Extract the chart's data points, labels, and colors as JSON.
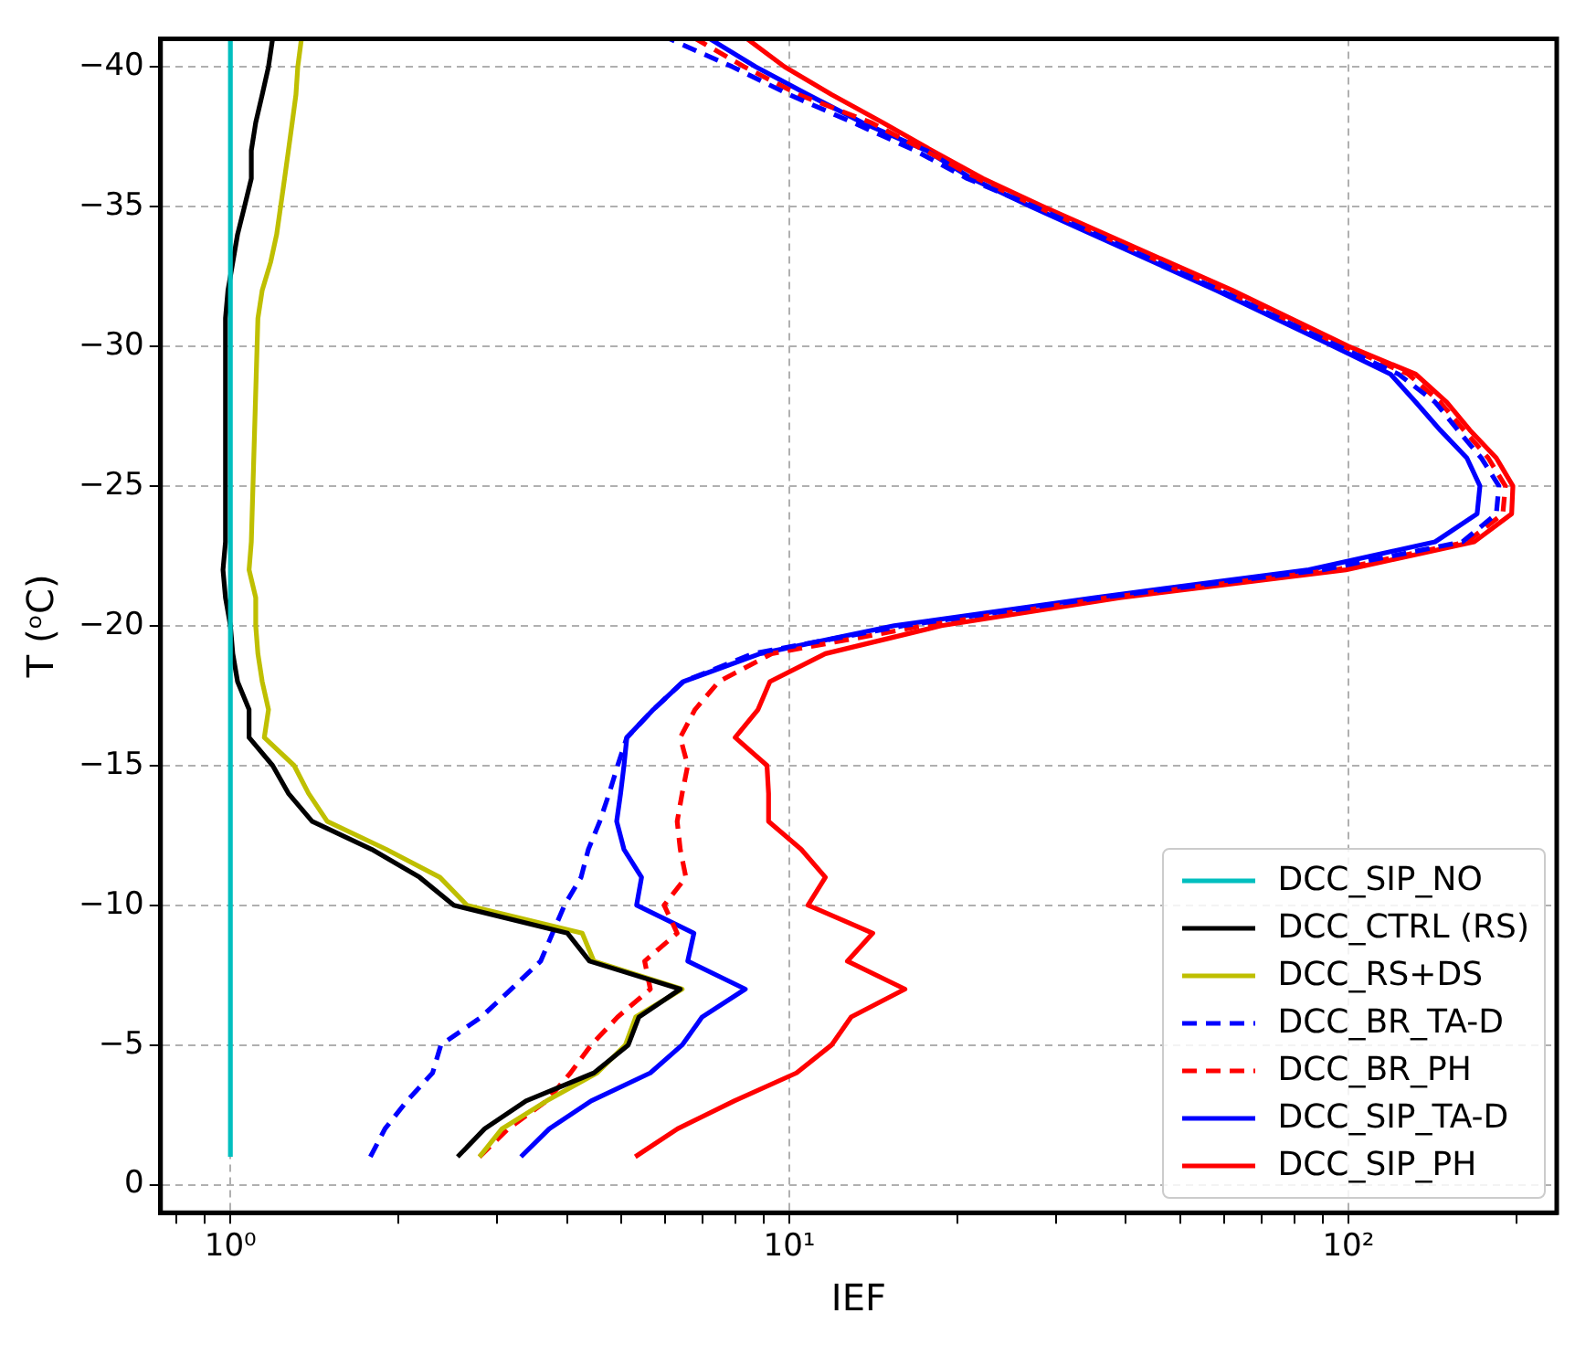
{
  "chart_data": {
    "type": "line",
    "xlabel": "IEF",
    "ylabel": "T (ᵒC)",
    "log": "x",
    "grid": true,
    "legend": "bottom right",
    "xlim": [
      0.75,
      236
    ],
    "ylim": [
      1,
      -41
    ],
    "xticks": [
      {
        "value": 0.8,
        "label": null
      },
      {
        "value": 0.9,
        "label": null
      },
      {
        "value": 1,
        "label": "10⁰"
      },
      {
        "value": 2,
        "label": null
      },
      {
        "value": 3,
        "label": null
      },
      {
        "value": 4,
        "label": null
      },
      {
        "value": 5,
        "label": null
      },
      {
        "value": 6,
        "label": null
      },
      {
        "value": 7,
        "label": null
      },
      {
        "value": 8,
        "label": null
      },
      {
        "value": 9,
        "label": null
      },
      {
        "value": 10,
        "label": "10¹"
      },
      {
        "value": 20,
        "label": null
      },
      {
        "value": 30,
        "label": null
      },
      {
        "value": 40,
        "label": null
      },
      {
        "value": 50,
        "label": null
      },
      {
        "value": 60,
        "label": null
      },
      {
        "value": 70,
        "label": null
      },
      {
        "value": 80,
        "label": null
      },
      {
        "value": 90,
        "label": null
      },
      {
        "value": 100,
        "label": "10²"
      },
      {
        "value": 200,
        "label": null
      }
    ],
    "yticks": [
      0,
      -5,
      -10,
      -15,
      -20,
      -25,
      -30,
      -35,
      -40
    ],
    "series": [
      {
        "name": "DCC_SIP_NO",
        "color": "#00bfbf",
        "line_style": "solid",
        "x": [
          1,
          1
        ],
        "values": [
          -1,
          -41
        ]
      },
      {
        "name": "DCC_CTRL (RS)",
        "color": "#000000",
        "line_style": "solid",
        "x": [
          2.55,
          2.85,
          3.38,
          4.47,
          5.15,
          5.38,
          6.38,
          4.39,
          4.01,
          2.51,
          2.18,
          1.79,
          1.4,
          1.27,
          1.19,
          1.08,
          1.08,
          1.03,
          1.01,
          1.0,
          0.98,
          0.97,
          0.98,
          0.98,
          0.99,
          1.01,
          1.03,
          1.06,
          1.09,
          1.09,
          1.11,
          1.14,
          1.17,
          1.19
        ],
        "values": [
          -1,
          -2,
          -3,
          -4,
          -5,
          -6,
          -7,
          -8,
          -9,
          -10,
          -11,
          -12,
          -13,
          -14,
          -15,
          -16,
          -17,
          -18,
          -19,
          -20,
          -21,
          -22,
          -23,
          -31,
          -32,
          -33,
          -34,
          -35,
          -36,
          -37,
          -38,
          -39,
          -40,
          -41
        ]
      },
      {
        "name": "DCC_RS+DS",
        "color": "#bfbf00",
        "line_style": "solid",
        "x": [
          2.79,
          3.06,
          3.68,
          4.53,
          5.09,
          5.31,
          6.43,
          4.47,
          4.26,
          2.65,
          2.37,
          1.9,
          1.49,
          1.38,
          1.3,
          1.15,
          1.17,
          1.14,
          1.12,
          1.11,
          1.11,
          1.08,
          1.09,
          1.12,
          1.14,
          1.18,
          1.21,
          1.23,
          1.25,
          1.27,
          1.29,
          1.31,
          1.32,
          1.34
        ],
        "values": [
          -1,
          -2,
          -3,
          -4,
          -5,
          -6,
          -7,
          -8,
          -9,
          -10,
          -11,
          -12,
          -13,
          -14,
          -15,
          -16,
          -17,
          -18,
          -19,
          -20,
          -21,
          -22,
          -23,
          -31,
          -32,
          -33,
          -34,
          -35,
          -36,
          -37,
          -38,
          -39,
          -40,
          -41
        ]
      },
      {
        "name": "DCC_BR_TA-D",
        "color": "#0000ff",
        "line_style": "dashed",
        "x": [
          1.78,
          1.89,
          2.07,
          2.3,
          2.38,
          2.81,
          3.18,
          3.59,
          3.77,
          3.96,
          4.24,
          4.37,
          4.58,
          4.76,
          4.93,
          5.12,
          5.71,
          6.46,
          8.6,
          16,
          36,
          90,
          160,
          184,
          186,
          173,
          157,
          143,
          123,
          96,
          59,
          27.4,
          20.8,
          16.8,
          13.0,
          10.0,
          7.9,
          6.1
        ],
        "values": [
          -1,
          -2,
          -3,
          -4,
          -5,
          -6,
          -7,
          -8,
          -9,
          -10,
          -11,
          -12,
          -13,
          -14,
          -15,
          -16,
          -17,
          -18,
          -19,
          -20,
          -21,
          -22,
          -23,
          -24,
          -25,
          -26,
          -27,
          -28,
          -29,
          -30,
          -32,
          -35,
          -36,
          -37,
          -38,
          -39,
          -40,
          -41
        ]
      },
      {
        "name": "DCC_BR_PH",
        "color": "#ff0000",
        "line_style": "dashed",
        "x": [
          2.79,
          3.14,
          3.68,
          4.06,
          4.42,
          4.93,
          5.64,
          5.51,
          6.3,
          5.97,
          6.53,
          6.38,
          6.3,
          6.43,
          6.58,
          6.38,
          6.78,
          7.48,
          9.3,
          17.4,
          37,
          95,
          163,
          189,
          191,
          178,
          161,
          146,
          128,
          98,
          60,
          27.7,
          21.7,
          17.5,
          14,
          10.4,
          8.3,
          6.8
        ],
        "values": [
          -1,
          -2,
          -3,
          -4,
          -5,
          -6,
          -7,
          -8,
          -9,
          -10,
          -11,
          -12,
          -13,
          -14,
          -15,
          -16,
          -17,
          -18,
          -19,
          -20,
          -21,
          -22,
          -23,
          -24,
          -25,
          -26,
          -27,
          -28,
          -29,
          -30,
          -32,
          -35,
          -36,
          -37,
          -38,
          -39,
          -40,
          -41
        ]
      },
      {
        "name": "DCC_SIP_TA-D",
        "color": "#0000ff",
        "line_style": "solid",
        "x": [
          3.31,
          3.72,
          4.42,
          5.64,
          6.43,
          6.98,
          8.34,
          6.58,
          6.75,
          5.33,
          5.44,
          5.06,
          4.91,
          4.99,
          5.06,
          5.12,
          5.71,
          6.46,
          8.87,
          15.4,
          35,
          85,
          143,
          170,
          172,
          163,
          146,
          132,
          119,
          94,
          58,
          27,
          21.2,
          17.6,
          13.5,
          10.8,
          8.7,
          7.2
        ],
        "values": [
          -1,
          -2,
          -3,
          -4,
          -5,
          -6,
          -7,
          -8,
          -9,
          -10,
          -11,
          -12,
          -13,
          -14,
          -15,
          -16,
          -17,
          -18,
          -19,
          -20,
          -21,
          -22,
          -23,
          -24,
          -25,
          -26,
          -27,
          -28,
          -29,
          -30,
          -32,
          -35,
          -36,
          -37,
          -38,
          -39,
          -40,
          -41
        ]
      },
      {
        "name": "DCC_SIP_PH",
        "color": "#ff0000",
        "line_style": "solid",
        "x": [
          5.3,
          6.31,
          7.97,
          10.3,
          11.9,
          12.9,
          16.1,
          12.7,
          14.1,
          10.8,
          11.6,
          10.5,
          9.18,
          9.18,
          9.12,
          8.0,
          8.79,
          9.23,
          11.6,
          18.7,
          39,
          99,
          168,
          196,
          197,
          184,
          165,
          150,
          132,
          100,
          62,
          28.4,
          22.2,
          18.0,
          14.7,
          11.9,
          9.8,
          8.4
        ],
        "values": [
          -1,
          -2,
          -3,
          -4,
          -5,
          -6,
          -7,
          -8,
          -9,
          -10,
          -11,
          -12,
          -13,
          -14,
          -15,
          -16,
          -17,
          -18,
          -19,
          -20,
          -21,
          -22,
          -23,
          -24,
          -25,
          -26,
          -27,
          -28,
          -29,
          -30,
          -32,
          -35,
          -36,
          -37,
          -38,
          -39,
          -40,
          -41
        ]
      }
    ]
  }
}
